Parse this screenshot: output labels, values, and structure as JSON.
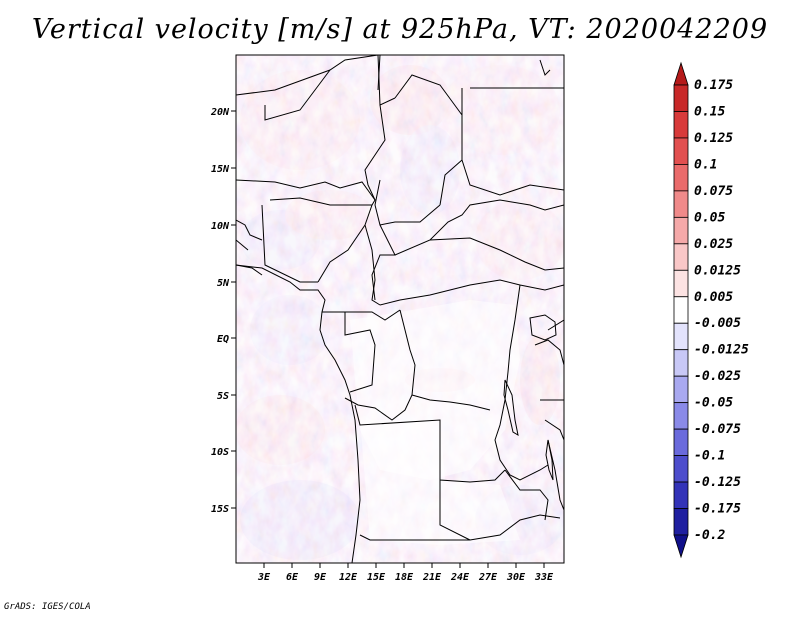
{
  "title": "Vertical velocity [m/s] at 925hPa, VT: 2020042209",
  "credit": "GrADS: IGES/COLA",
  "map": {
    "variable": "Vertical velocity",
    "units": "m/s",
    "level": "925hPa",
    "valid_time": "2020042209",
    "region": "Central Africa",
    "lat_labels": [
      "20N",
      "15N",
      "10N",
      "5N",
      "EQ",
      "5S",
      "10S",
      "15S"
    ],
    "lon_labels": [
      "3E",
      "6E",
      "9E",
      "12E",
      "15E",
      "18E",
      "21E",
      "24E",
      "27E",
      "30E",
      "33E"
    ]
  },
  "legend": {
    "levels": [
      "0.175",
      "0.15",
      "0.125",
      "0.1",
      "0.075",
      "0.05",
      "0.025",
      "0.0125",
      "0.005",
      "-0.005",
      "-0.0125",
      "-0.025",
      "-0.05",
      "-0.075",
      "-0.1",
      "-0.125",
      "-0.175",
      "-0.2"
    ],
    "colors": [
      "#b51a1a",
      "#c82828",
      "#d83a3a",
      "#e25050",
      "#ea6b6b",
      "#f08a8a",
      "#f5a9a9",
      "#f9c7c7",
      "#fce3e3",
      "#ffffff",
      "#e3e3fc",
      "#c8c8f6",
      "#a9a9f0",
      "#8a8ae8",
      "#6a6adc",
      "#4d4dcc",
      "#3333b8",
      "#1f1fa0",
      "#10108a"
    ]
  }
}
